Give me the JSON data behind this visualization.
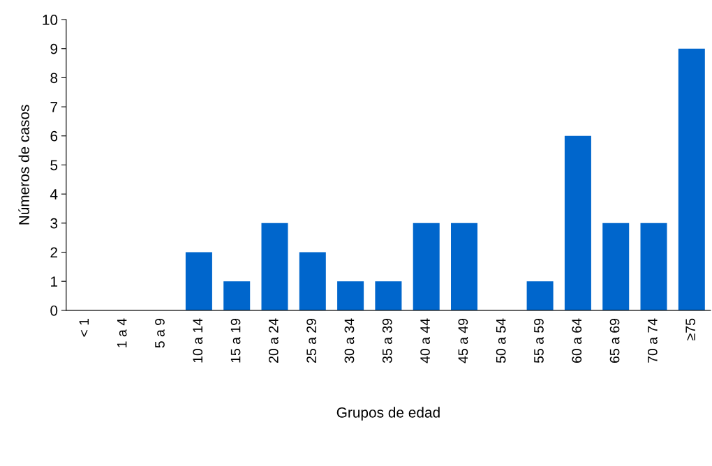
{
  "chart_data": {
    "type": "bar",
    "xlabel": "Grupos de edad",
    "ylabel": "Números de casos",
    "categories": [
      "< 1",
      "1 a 4",
      "5 a 9",
      "10 a 14",
      "15 a 19",
      "20 a 24",
      "25 a 29",
      "30 a 34",
      "35 a 39",
      "40 a 44",
      "45 a 49",
      "50 a 54",
      "55 a 59",
      "60 a 64",
      "65 a 69",
      "70 a 74",
      "≥75"
    ],
    "values": [
      0,
      0,
      0,
      2,
      1,
      3,
      2,
      1,
      1,
      3,
      3,
      0,
      1,
      6,
      3,
      3,
      9
    ],
    "color": "#0066cc",
    "ylim": [
      0,
      10
    ],
    "yticks": [
      0,
      1,
      2,
      3,
      4,
      5,
      6,
      7,
      8,
      9,
      10
    ],
    "grid": false,
    "legend": false
  }
}
